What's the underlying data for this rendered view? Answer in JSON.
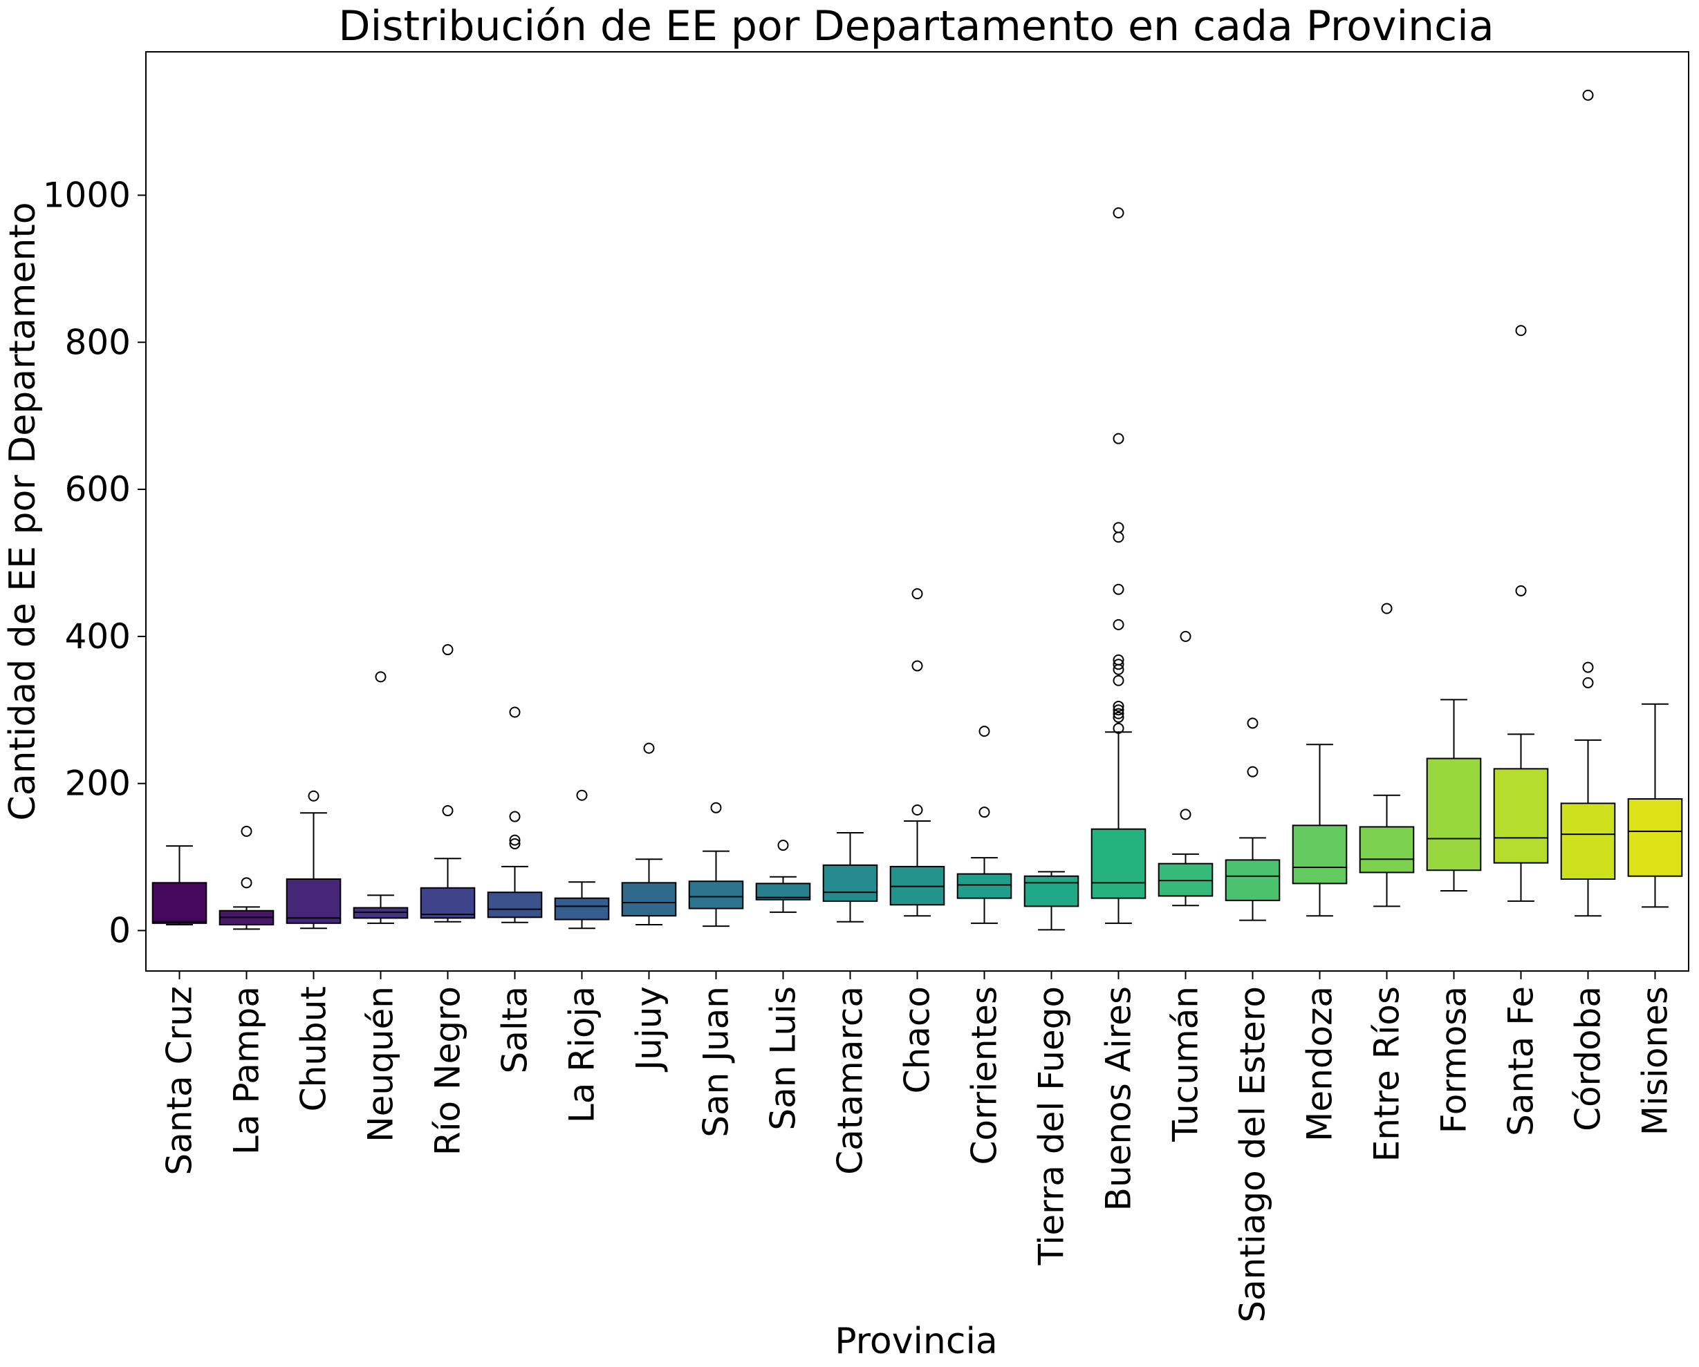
{
  "chart_data": {
    "type": "box",
    "title": "Distribución de EE por Departamento en cada Provincia",
    "xlabel": "Provincia",
    "ylabel": "Cantidad de EE por Departamento",
    "ylim": [
      -55,
      1195
    ],
    "yticks": [
      0,
      200,
      400,
      600,
      800,
      1000
    ],
    "ytick_labels": [
      "0",
      "200",
      "400",
      "600",
      "800",
      "1000"
    ],
    "grid": false,
    "legend": "none",
    "categories": [
      "Santa Cruz",
      "La Pampa",
      "Chubut",
      "Neuquén",
      "Río Negro",
      "Salta",
      "La Rioja",
      "Jujuy",
      "San Juan",
      "San Luis",
      "Catamarca",
      "Chaco",
      "Corrientes",
      "Tierra del Fuego",
      "Buenos Aires",
      "Tucumán",
      "Santiago del Estero",
      "Mendoza",
      "Entre Ríos",
      "Formosa",
      "Santa Fe",
      "Córdoba",
      "Misiones"
    ],
    "colors": [
      "#46085c",
      "#471b6e",
      "#45307e",
      "#3f418a",
      "#39538c",
      "#33638d",
      "#2e718e",
      "#29808e",
      "#248e8c",
      "#1f9a8a",
      "#1fa886",
      "#27b47f",
      "#3fbe75",
      "#5ec962",
      "#7fd24d",
      "#a3da37",
      "#c8e020",
      "#dde318"
    ],
    "boxes": [
      {
        "name": "Santa Cruz",
        "whislo": 8,
        "q1": 10,
        "med": 12,
        "q3": 65,
        "whishi": 115,
        "fliers": []
      },
      {
        "name": "La Pampa",
        "whislo": 2,
        "q1": 8,
        "med": 18,
        "q3": 27,
        "whishi": 32,
        "fliers": [
          65,
          135
        ]
      },
      {
        "name": "Chubut",
        "whislo": 3,
        "q1": 10,
        "med": 17,
        "q3": 70,
        "whishi": 160,
        "fliers": [
          183
        ]
      },
      {
        "name": "Neuquén",
        "whislo": 10,
        "q1": 17,
        "med": 25,
        "q3": 31,
        "whishi": 48,
        "fliers": [
          345
        ]
      },
      {
        "name": "Río Negro",
        "whislo": 12,
        "q1": 17,
        "med": 22,
        "q3": 58,
        "whishi": 98,
        "fliers": [
          163,
          382
        ]
      },
      {
        "name": "Salta",
        "whislo": 11,
        "q1": 18,
        "med": 29,
        "q3": 52,
        "whishi": 87,
        "fliers": [
          118,
          123,
          155,
          297
        ]
      },
      {
        "name": "La Rioja",
        "whislo": 3,
        "q1": 15,
        "med": 33,
        "q3": 44,
        "whishi": 66,
        "fliers": [
          184
        ]
      },
      {
        "name": "Jujuy",
        "whislo": 8,
        "q1": 20,
        "med": 38,
        "q3": 65,
        "whishi": 97,
        "fliers": [
          248
        ]
      },
      {
        "name": "San Juan",
        "whislo": 6,
        "q1": 30,
        "med": 46,
        "q3": 67,
        "whishi": 108,
        "fliers": [
          167
        ]
      },
      {
        "name": "San Luis",
        "whislo": 25,
        "q1": 42,
        "med": 45,
        "q3": 64,
        "whishi": 73,
        "fliers": [
          116
        ]
      },
      {
        "name": "Catamarca",
        "whislo": 12,
        "q1": 40,
        "med": 52,
        "q3": 89,
        "whishi": 133,
        "fliers": []
      },
      {
        "name": "Chaco",
        "whislo": 20,
        "q1": 35,
        "med": 60,
        "q3": 87,
        "whishi": 149,
        "fliers": [
          164,
          360,
          458
        ]
      },
      {
        "name": "Corrientes",
        "whislo": 10,
        "q1": 44,
        "med": 62,
        "q3": 77,
        "whishi": 99,
        "fliers": [
          161,
          271
        ]
      },
      {
        "name": "Tierra del Fuego",
        "whislo": 1,
        "q1": 33,
        "med": 65,
        "q3": 74,
        "whishi": 80,
        "fliers": []
      },
      {
        "name": "Buenos Aires",
        "whislo": 10,
        "q1": 44,
        "med": 65,
        "q3": 138,
        "whishi": 270,
        "fliers": [
          275,
          290,
          295,
          300,
          305,
          340,
          355,
          362,
          368,
          416,
          464,
          535,
          548,
          669,
          976
        ]
      },
      {
        "name": "Tucumán",
        "whislo": 34,
        "q1": 47,
        "med": 68,
        "q3": 91,
        "whishi": 104,
        "fliers": [
          158,
          400
        ]
      },
      {
        "name": "Santiago del Estero",
        "whislo": 14,
        "q1": 41,
        "med": 74,
        "q3": 96,
        "whishi": 126,
        "fliers": [
          216,
          282
        ]
      },
      {
        "name": "Mendoza",
        "whislo": 20,
        "q1": 64,
        "med": 86,
        "q3": 143,
        "whishi": 253,
        "fliers": []
      },
      {
        "name": "Entre Ríos",
        "whislo": 33,
        "q1": 79,
        "med": 97,
        "q3": 141,
        "whishi": 184,
        "fliers": [
          438
        ]
      },
      {
        "name": "Formosa",
        "whislo": 54,
        "q1": 82,
        "med": 125,
        "q3": 234,
        "whishi": 314,
        "fliers": []
      },
      {
        "name": "Santa Fe",
        "whislo": 40,
        "q1": 92,
        "med": 126,
        "q3": 220,
        "whishi": 267,
        "fliers": [
          462,
          816
        ]
      },
      {
        "name": "Córdoba",
        "whislo": 20,
        "q1": 70,
        "med": 131,
        "q3": 173,
        "whishi": 259,
        "fliers": [
          337,
          358,
          1136
        ]
      },
      {
        "name": "Misiones",
        "whislo": 32,
        "q1": 74,
        "med": 135,
        "q3": 179,
        "whishi": 308,
        "fliers": []
      }
    ]
  }
}
